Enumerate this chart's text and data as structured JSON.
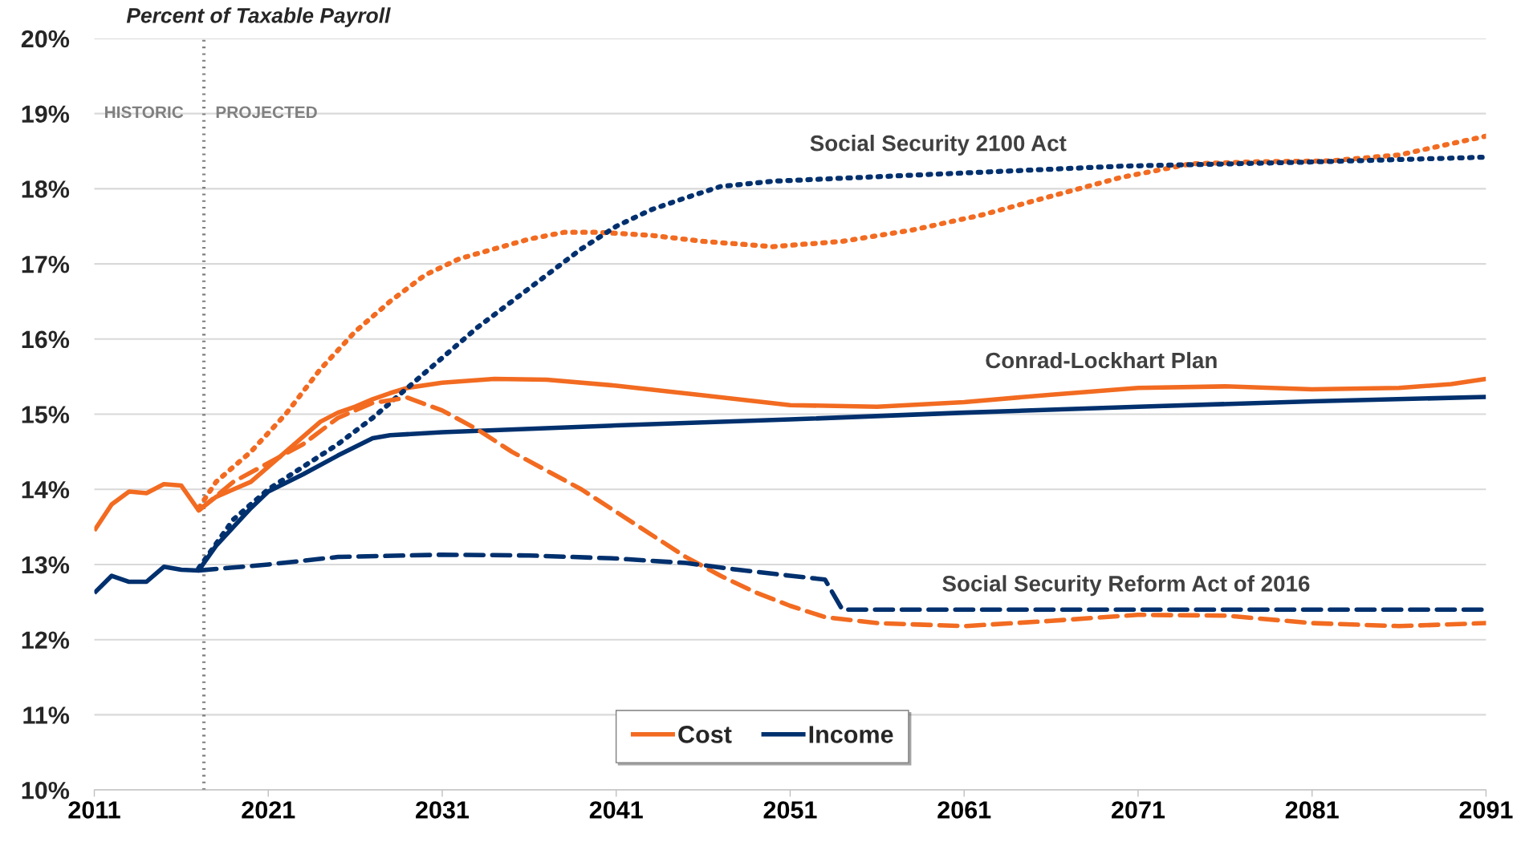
{
  "chart_data": {
    "type": "line",
    "title": "Percent of Taxable Payroll",
    "xlim": [
      2011,
      2091
    ],
    "xticks": [
      2011,
      2021,
      2031,
      2041,
      2051,
      2061,
      2071,
      2081,
      2091
    ],
    "ylim": [
      10,
      20
    ],
    "yticks": [
      {
        "value": 10,
        "label": "10%"
      },
      {
        "value": 11,
        "label": "11%"
      },
      {
        "value": 12,
        "label": "12%"
      },
      {
        "value": 13,
        "label": "13%"
      },
      {
        "value": 14,
        "label": "14%"
      },
      {
        "value": 15,
        "label": "15%"
      },
      {
        "value": 16,
        "label": "16%"
      },
      {
        "value": 17,
        "label": "17%"
      },
      {
        "value": 18,
        "label": "18%"
      },
      {
        "value": 19,
        "label": "19%"
      },
      {
        "value": 20,
        "label": "20%"
      }
    ],
    "grid": "y",
    "legend": "bottom",
    "ref_lines": [
      {
        "axis": "x",
        "value": 2017.3,
        "color": "#808080",
        "line_style": "dotted"
      }
    ],
    "annotations": [
      "HISTORIC",
      "PROJECTED",
      "Social Security 2100 Act",
      "Conrad-Lockhart Plan",
      "Social Security Reform Act of 2016"
    ],
    "series": [
      {
        "name": "Cost",
        "color": "#f26b21",
        "line_style": "solid",
        "x": [
          2011,
          2012,
          2013,
          2014,
          2015,
          2016,
          2017
        ],
        "values": [
          13.45,
          13.8,
          13.97,
          13.95,
          14.07,
          14.05,
          13.72
        ]
      },
      {
        "name": "Income",
        "color": "#00306e",
        "line_style": "solid",
        "x": [
          2011,
          2012,
          2013,
          2014,
          2015,
          2016,
          2017
        ],
        "values": [
          12.62,
          12.85,
          12.77,
          12.77,
          12.97,
          12.93,
          12.92
        ]
      },
      {
        "color": "#f26b21",
        "line_style": "solid",
        "x": [
          2017,
          2018,
          2019,
          2020,
          2021,
          2022,
          2023,
          2024,
          2025,
          2026,
          2027,
          2028,
          2029,
          2031,
          2034,
          2037,
          2041,
          2046,
          2051,
          2056,
          2061,
          2066,
          2071,
          2076,
          2081,
          2086,
          2089,
          2091
        ],
        "values": [
          13.72,
          13.9,
          14.0,
          14.1,
          14.3,
          14.5,
          14.7,
          14.9,
          15.02,
          15.1,
          15.2,
          15.28,
          15.35,
          15.42,
          15.47,
          15.46,
          15.38,
          15.25,
          15.12,
          15.1,
          15.16,
          15.26,
          15.35,
          15.37,
          15.33,
          15.35,
          15.4,
          15.47
        ]
      },
      {
        "color": "#00306e",
        "line_style": "solid",
        "x": [
          2017,
          2018,
          2019,
          2020,
          2021,
          2023,
          2025,
          2027,
          2028,
          2031,
          2041,
          2051,
          2061,
          2071,
          2081,
          2091
        ],
        "values": [
          12.92,
          13.25,
          13.5,
          13.75,
          13.97,
          14.2,
          14.45,
          14.68,
          14.72,
          14.76,
          14.85,
          14.93,
          15.02,
          15.1,
          15.17,
          15.23
        ]
      },
      {
        "color": "#f26b21",
        "line_style": "dotted",
        "x": [
          2017,
          2018,
          2020,
          2022,
          2024,
          2026,
          2028,
          2030,
          2032,
          2034,
          2036,
          2038,
          2040,
          2043,
          2046,
          2050,
          2054,
          2058,
          2062,
          2066,
          2070,
          2074,
          2078,
          2082,
          2086,
          2089,
          2091
        ],
        "values": [
          13.75,
          14.1,
          14.5,
          15.0,
          15.6,
          16.1,
          16.5,
          16.85,
          17.07,
          17.2,
          17.33,
          17.42,
          17.42,
          17.38,
          17.3,
          17.23,
          17.3,
          17.45,
          17.65,
          17.9,
          18.15,
          18.33,
          18.36,
          18.37,
          18.45,
          18.6,
          18.7
        ]
      },
      {
        "color": "#00306e",
        "line_style": "dotted",
        "x": [
          2017,
          2019,
          2021,
          2023,
          2025,
          2027,
          2029,
          2031,
          2033,
          2035,
          2037,
          2039,
          2041,
          2043,
          2045,
          2047,
          2050,
          2055,
          2060,
          2065,
          2070,
          2080,
          2091
        ],
        "values": [
          12.95,
          13.6,
          14.0,
          14.3,
          14.6,
          14.95,
          15.35,
          15.75,
          16.15,
          16.5,
          16.85,
          17.2,
          17.5,
          17.72,
          17.88,
          18.03,
          18.1,
          18.15,
          18.2,
          18.25,
          18.3,
          18.35,
          18.42
        ]
      },
      {
        "color": "#f26b21",
        "line_style": "dashed",
        "x": [
          2017,
          2019,
          2021,
          2023,
          2025,
          2027,
          2029,
          2031,
          2033,
          2035,
          2037,
          2039,
          2041,
          2043,
          2045,
          2047,
          2049,
          2051,
          2053,
          2056,
          2061,
          2066,
          2071,
          2076,
          2081,
          2086,
          2091
        ],
        "values": [
          13.72,
          14.1,
          14.35,
          14.6,
          14.95,
          15.15,
          15.22,
          15.05,
          14.8,
          14.5,
          14.25,
          14.0,
          13.7,
          13.4,
          13.1,
          12.85,
          12.63,
          12.45,
          12.3,
          12.22,
          12.18,
          12.25,
          12.33,
          12.32,
          12.22,
          12.18,
          12.22
        ]
      },
      {
        "color": "#00306e",
        "line_style": "dashed",
        "x": [
          2017,
          2021,
          2025,
          2031,
          2036,
          2041,
          2045,
          2048,
          2051,
          2053,
          2054,
          2091
        ],
        "values": [
          12.92,
          13.0,
          13.1,
          13.13,
          13.12,
          13.08,
          13.02,
          12.93,
          12.85,
          12.8,
          12.4,
          12.4
        ]
      }
    ]
  }
}
